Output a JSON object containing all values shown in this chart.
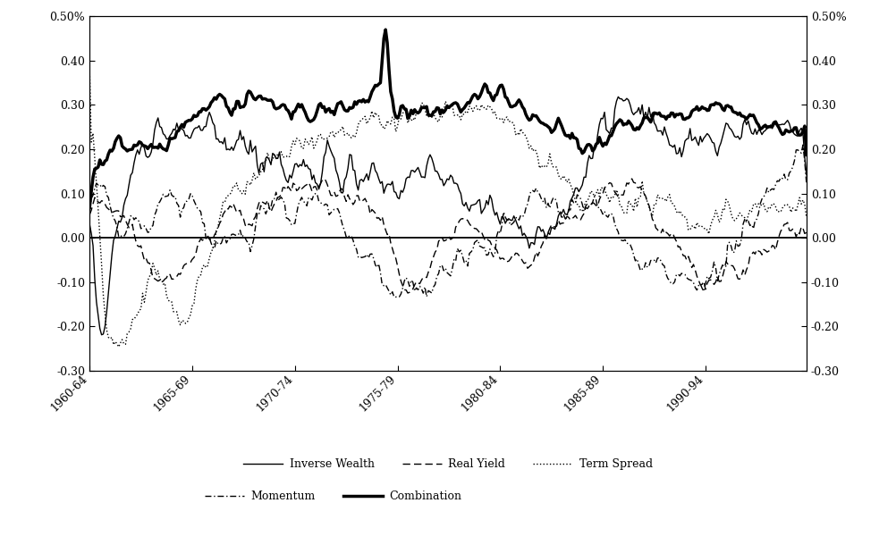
{
  "ylim": [
    -0.3,
    0.5
  ],
  "yticks": [
    -0.3,
    -0.2,
    -0.1,
    0.0,
    0.1,
    0.2,
    0.3,
    0.4,
    0.5
  ],
  "left_yticklabels": [
    "-0.30",
    "-0.20",
    "-0.10",
    "0.00",
    "0.10",
    "0.20",
    "0.30",
    "0.40",
    "0.50%"
  ],
  "right_yticklabels": [
    "-0.30",
    "-0.20",
    "-0.10",
    "0.00",
    "0.10",
    "0.20",
    "0.30",
    "0.40",
    "0.50%"
  ],
  "xtick_positions": [
    0,
    60,
    120,
    180,
    240,
    300,
    360
  ],
  "xtick_labels": [
    "1960-64",
    "1965-69",
    "1970-74",
    "1975-79",
    "1980-84",
    "1985-89",
    "1990-94"
  ],
  "n_points": 420,
  "background_color": "#ffffff"
}
